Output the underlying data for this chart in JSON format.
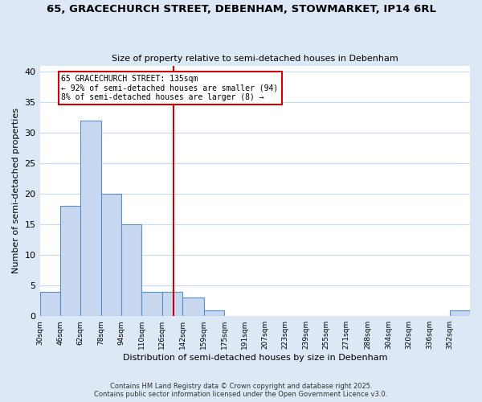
{
  "title_line1": "65, GRACECHURCH STREET, DEBENHAM, STOWMARKET, IP14 6RL",
  "title_line2": "Size of property relative to semi-detached houses in Debenham",
  "xlabel": "Distribution of semi-detached houses by size in Debenham",
  "ylabel": "Number of semi-detached properties",
  "bar_counts": [
    4,
    18,
    32,
    20,
    15,
    4,
    4,
    3,
    1,
    0,
    0,
    0,
    0,
    0,
    0,
    0,
    0,
    0,
    0,
    0,
    1
  ],
  "bin_labels": [
    "30sqm",
    "46sqm",
    "62sqm",
    "78sqm",
    "94sqm",
    "110sqm",
    "126sqm",
    "142sqm",
    "159sqm",
    "175sqm",
    "191sqm",
    "207sqm",
    "223sqm",
    "239sqm",
    "255sqm",
    "271sqm",
    "288sqm",
    "304sqm",
    "320sqm",
    "336sqm",
    "352sqm"
  ],
  "bin_edges": [
    30,
    46,
    62,
    78,
    94,
    110,
    126,
    142,
    159,
    175,
    191,
    207,
    223,
    239,
    255,
    271,
    288,
    304,
    320,
    336,
    352,
    368
  ],
  "bar_color": "#c8d8f0",
  "bar_edge_color": "#5b8ec4",
  "vline_x": 135,
  "vline_color": "#cc0000",
  "annotation_title": "65 GRACECHURCH STREET: 135sqm",
  "annotation_line2": "← 92% of semi-detached houses are smaller (94)",
  "annotation_line3": "8% of semi-detached houses are larger (8) →",
  "annotation_box_color": "#cc0000",
  "annotation_box_fill": "#ffffff",
  "ylim": [
    0,
    41
  ],
  "yticks": [
    0,
    5,
    10,
    15,
    20,
    25,
    30,
    35,
    40
  ],
  "fig_bg_color": "#dce8f5",
  "plot_bg_color": "#ffffff",
  "grid_color": "#c8d8f0",
  "footer_line1": "Contains HM Land Registry data © Crown copyright and database right 2025.",
  "footer_line2": "Contains public sector information licensed under the Open Government Licence v3.0."
}
